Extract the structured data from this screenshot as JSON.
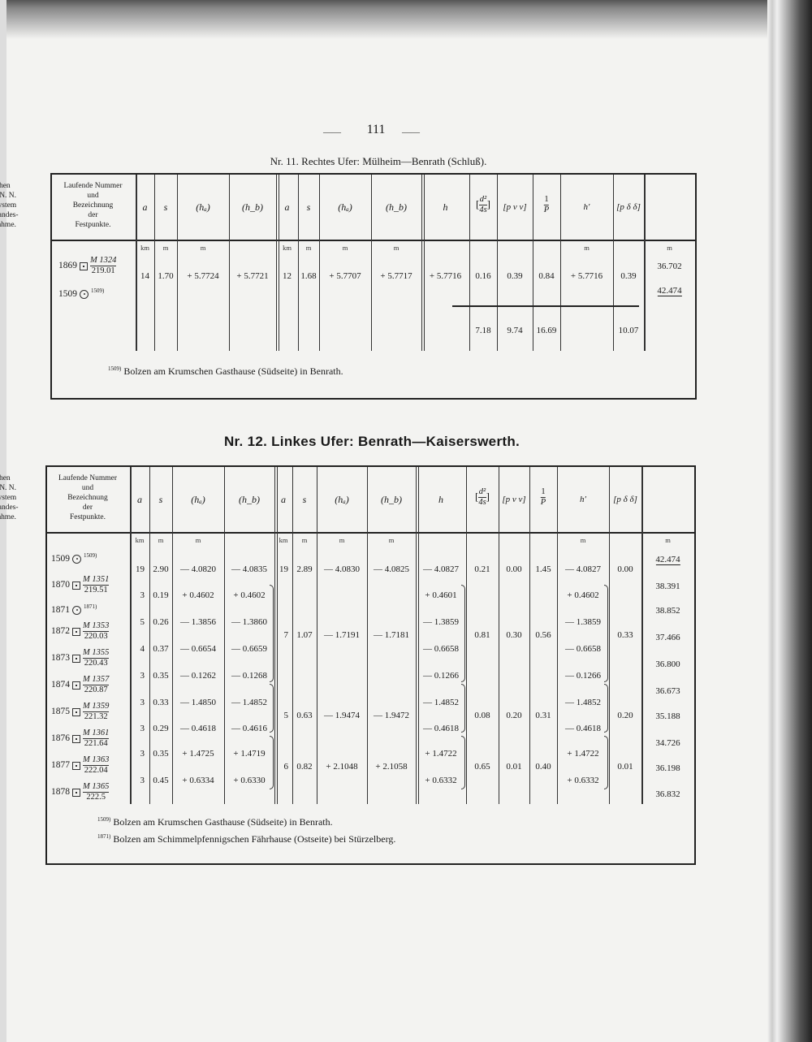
{
  "page_number": "111",
  "page_number_dashes": [
    "——",
    "——"
  ],
  "headers": {
    "point": [
      "Laufende Nummer",
      "und",
      "Bezeichnung",
      "der",
      "Festpunkte."
    ],
    "a": "a",
    "s": "s",
    "ha": "(hₐ)",
    "hb": "(h_b)",
    "h": "h",
    "d2": "[d²/4s]",
    "d2_num": "d²",
    "d2_den": "4s",
    "pvv": "[p v v]",
    "invP_num": "1",
    "invP_den": "P",
    "hprime": "h′",
    "pdd": "[p δ δ]",
    "heights": [
      "Höhen",
      "über N. N.",
      "im System",
      "der Landes-",
      "aufnahme."
    ]
  },
  "units": {
    "km": "km",
    "m": "m"
  },
  "table1": {
    "title": "Nr. 11.  Rechtes Ufer: Mülheim—Benrath (Schluß).",
    "points": [
      {
        "no": "1869",
        "symbol": "square-dot",
        "mark": "M 1324",
        "sub": "219.01",
        "height": "36.702"
      },
      {
        "no": "1509",
        "symbol": "circle-dot",
        "note": "1509)",
        "height": "42.474"
      }
    ],
    "row": {
      "a1": "14",
      "s1": "1.70",
      "ha1": "+ 5.7724",
      "hb1": "+ 5.7721",
      "a2": "12",
      "s2": "1.68",
      "ha2": "+ 5.7707",
      "hb2": "+ 5.7717",
      "h": "+ 5.7716",
      "d2": "0.16",
      "pvv": "0.39",
      "invP": "0.84",
      "hprime": "+ 5.7716",
      "pdd": "0.39"
    },
    "sums": {
      "d2": "7.18",
      "pvv": "9.74",
      "invP": "16.69",
      "pdd": "10.07"
    },
    "footnotes": [
      {
        "mark": "1509)",
        "text": "Bolzen am Krumschen Gasthause (Südseite) in Benrath."
      }
    ]
  },
  "table2": {
    "title": "Nr. 12.  Linkes Ufer: Benrath—Kaiserswerth.",
    "points": [
      {
        "no": "1509",
        "symbol": "circle-dot",
        "note": "1509)",
        "height": "42.474"
      },
      {
        "no": "1870",
        "symbol": "square-dot",
        "mark": "M 1351",
        "sub": "219.51",
        "height": "38.391"
      },
      {
        "no": "1871",
        "symbol": "circle-dot",
        "note": "1871)",
        "height": "38.852"
      },
      {
        "no": "1872",
        "symbol": "square-dot",
        "mark": "M 1353",
        "sub": "220.03",
        "height": "37.466"
      },
      {
        "no": "1873",
        "symbol": "square-dot",
        "mark": "M 1355",
        "sub": "220.43",
        "height": "36.800"
      },
      {
        "no": "1874",
        "symbol": "square-dot",
        "mark": "M 1357",
        "sub": "220.87",
        "height": "36.673"
      },
      {
        "no": "1875",
        "symbol": "square-dot",
        "mark": "M 1359",
        "sub": "221.32",
        "height": "35.188"
      },
      {
        "no": "1876",
        "symbol": "square-dot",
        "mark": "M 1361",
        "sub": "221.64",
        "height": "34.726"
      },
      {
        "no": "1877",
        "symbol": "square-dot",
        "mark": "M 1363",
        "sub": "222.04",
        "height": "36.198"
      },
      {
        "no": "1878",
        "symbol": "square-dot",
        "mark": "M 1365",
        "sub": "222.5",
        "height": "36.832"
      }
    ],
    "segments": [
      {
        "a": "19",
        "s": "2.90",
        "ha": "— 4.0820",
        "hb": "— 4.0835",
        "h": "— 4.0827",
        "hprime": "— 4.0827"
      },
      {
        "a": "3",
        "s": "0.19",
        "ha": "+ 0.4602",
        "hb": "+ 0.4602",
        "h": "+ 0.4601",
        "hprime": "+ 0.4602"
      },
      {
        "a": "5",
        "s": "0.26",
        "ha": "— 1.3856",
        "hb": "— 1.3860",
        "h": "— 1.3859",
        "hprime": "— 1.3859"
      },
      {
        "a": "4",
        "s": "0.37",
        "ha": "— 0.6654",
        "hb": "— 0.6659",
        "h": "— 0.6658",
        "hprime": "— 0.6658"
      },
      {
        "a": "3",
        "s": "0.35",
        "ha": "— 0.1262",
        "hb": "— 0.1268",
        "h": "— 0.1266",
        "hprime": "— 0.1266"
      },
      {
        "a": "3",
        "s": "0.33",
        "ha": "— 1.4850",
        "hb": "— 1.4852",
        "h": "— 1.4852",
        "hprime": "— 1.4852"
      },
      {
        "a": "3",
        "s": "0.29",
        "ha": "— 0.4618",
        "hb": "— 0.4616",
        "h": "— 0.4618",
        "hprime": "— 0.4618"
      },
      {
        "a": "3",
        "s": "0.35",
        "ha": "+ 1.4725",
        "hb": "+ 1.4719",
        "h": "+ 1.4722",
        "hprime": "+ 1.4722"
      },
      {
        "a": "3",
        "s": "0.45",
        "ha": "+ 0.6334",
        "hb": "+ 0.6330",
        "h": "+ 0.6332",
        "hprime": "+ 0.6332"
      }
    ],
    "groups": [
      {
        "a": "19",
        "s": "2.89",
        "ha": "— 4.0830",
        "hb": "— 4.0825",
        "d2": "0.21",
        "pvv": "0.00",
        "invP": "1.45",
        "pdd": "0.00"
      },
      {
        "a": "7",
        "s": "1.07",
        "ha": "— 1.7191",
        "hb": "— 1.7181",
        "d2": "0.81",
        "pvv": "0.30",
        "invP": "0.56",
        "pdd": "0.33"
      },
      {
        "a": "5",
        "s": "0.63",
        "ha": "— 1.9474",
        "hb": "— 1.9472",
        "d2": "0.08",
        "pvv": "0.20",
        "invP": "0.31",
        "pdd": "0.20"
      },
      {
        "a": "6",
        "s": "0.82",
        "ha": "+ 2.1048",
        "hb": "+ 2.1058",
        "d2": "0.65",
        "pvv": "0.01",
        "invP": "0.40",
        "pdd": "0.01"
      }
    ],
    "footnotes": [
      {
        "mark": "1509)",
        "text": "Bolzen am Krumschen Gasthause (Südseite) in Benrath."
      },
      {
        "mark": "1871)",
        "text": "Bolzen am Schimmelpfennigschen Fährhause (Ostseite) bei Stürzelberg."
      }
    ]
  }
}
